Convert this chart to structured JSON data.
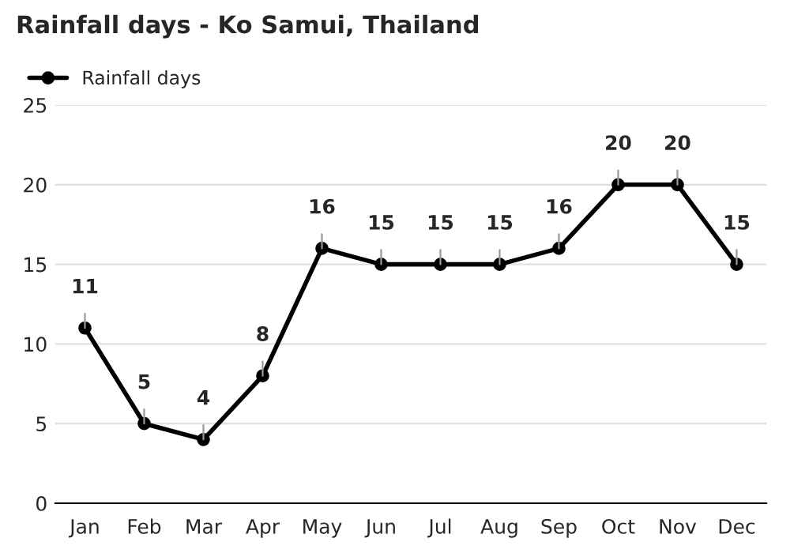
{
  "chart_data": {
    "type": "line",
    "title": "Rainfall days - Ko Samui, Thailand",
    "categories": [
      "Jan",
      "Feb",
      "Mar",
      "Apr",
      "May",
      "Jun",
      "Jul",
      "Aug",
      "Sep",
      "Oct",
      "Nov",
      "Dec"
    ],
    "series": [
      {
        "name": "Rainfall days",
        "color": "#000000",
        "values": [
          11,
          5,
          4,
          8,
          16,
          15,
          15,
          15,
          16,
          20,
          20,
          15
        ]
      }
    ],
    "ylim": [
      0,
      25
    ],
    "yticks": [
      0,
      5,
      10,
      15,
      20,
      25
    ],
    "grid": "y",
    "legend": "top left",
    "marker": "circle",
    "line_style": "solid",
    "data_labels": true
  }
}
